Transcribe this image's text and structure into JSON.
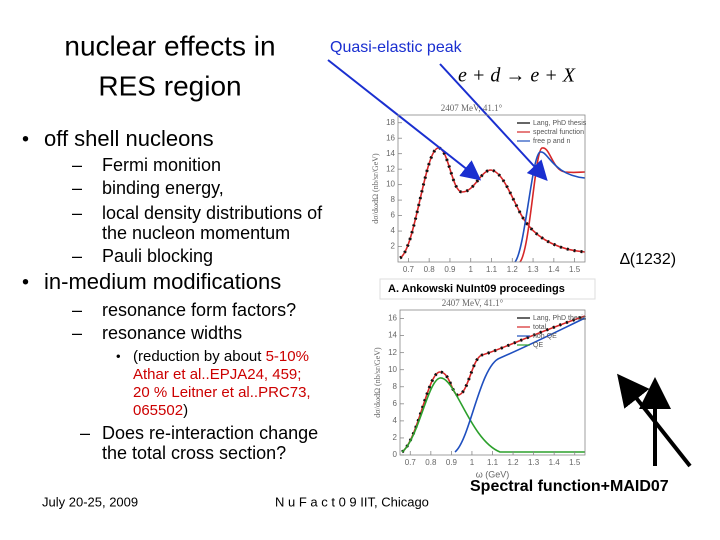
{
  "title": [
    "nuclear effects in",
    "RES region"
  ],
  "annotation": "Quasi-elastic peak",
  "formula": "e + d → e + X",
  "delta_label": "∆(1232)",
  "source": "A. Ankowski NuInt09 proceedings",
  "caption": "Spectral function+MAID07",
  "bullets": [
    {
      "text": "off shell nucleons",
      "items": [
        [
          "Fermi monition"
        ],
        [
          "binding energy,"
        ],
        [
          "local density distributions of",
          "the nucleon momentum"
        ],
        [
          "Pauli blocking"
        ]
      ]
    },
    {
      "text": "in-medium modifications",
      "items": [
        [
          "resonance form factors?"
        ],
        [
          "resonance widths"
        ]
      ]
    }
  ],
  "note": [
    [
      {
        "text": "(reduction by about ",
        "color": "#000000"
      },
      {
        "text": "5-10%",
        "color": "#cc0000"
      }
    ],
    [
      {
        "text": "Athar et al..EPJA24, 459;",
        "color": "#cc0000"
      }
    ],
    [
      {
        "text": "20 % Leitner et al..PRC73,",
        "color": "#cc0000"
      }
    ],
    [
      {
        "text": "065502",
        "color": "#cc0000"
      },
      {
        "text": ")",
        "color": "#000000"
      }
    ]
  ],
  "question": [
    "Does re-interaction change",
    "the total cross section?"
  ],
  "footer": {
    "date": "July 20-25, 2009",
    "event": "N u F a c t 0 9 IIT, Chicago"
  },
  "plots": [
    {
      "header": "2407 MeV, 41.1°",
      "ylabel": "dσ/dωdΩ (nb/sr/GeV)",
      "legend": [
        {
          "name": "Lang, PhD thesis",
          "color": "#000000"
        },
        {
          "name": "spectral function",
          "color": "#d62728"
        },
        {
          "name": "free p and n",
          "color": "#1f4fbf"
        }
      ],
      "xlim": [
        0.65,
        1.55
      ],
      "ylim": [
        0,
        19
      ],
      "xticks": [
        0.7,
        0.8,
        0.9,
        1,
        1.1,
        1.2,
        1.3,
        1.4,
        1.5
      ],
      "yticks": [
        2,
        4,
        6,
        8,
        10,
        12,
        14,
        16,
        18
      ]
    },
    {
      "header": "2407 MeV, 41.1°",
      "ylabel": "dσ/dωdΩ (nb/sr/GeV)",
      "xlabel": "ω (GeV)",
      "legend": [
        {
          "name": "Lang, PhD thesis",
          "color": "#000000"
        },
        {
          "name": "total",
          "color": "#d62728"
        },
        {
          "name": "non QE",
          "color": "#1f4fbf"
        },
        {
          "name": "QE",
          "color": "#2ca02c"
        }
      ],
      "xlim": [
        0.65,
        1.55
      ],
      "ylim": [
        0,
        17
      ],
      "xticks": [
        0.7,
        0.8,
        0.9,
        1,
        1.1,
        1.2,
        1.3,
        1.4,
        1.5
      ],
      "yticks": [
        0,
        2,
        4,
        6,
        8,
        10,
        12,
        14,
        16
      ]
    }
  ]
}
